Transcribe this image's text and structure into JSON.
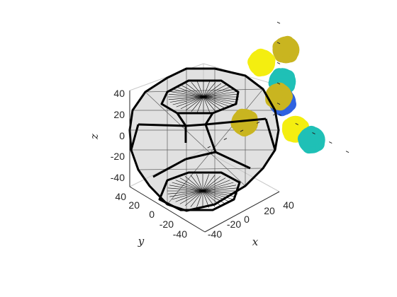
{
  "chart_data": {
    "type": "scatter",
    "title": "",
    "xlabel": "x",
    "ylabel": "y",
    "zlabel": "z",
    "xlim": [
      -45,
      45
    ],
    "ylim": [
      -45,
      45
    ],
    "zlim": [
      -50,
      45
    ],
    "x_ticks": [
      "-40",
      "-20",
      "0",
      "20",
      "40"
    ],
    "y_ticks": [
      "-40",
      "-20",
      "0",
      "20",
      "40"
    ],
    "z_ticks": [
      "-40",
      "-20",
      "0",
      "20",
      "40"
    ],
    "shape": "truncated octahedron wireframe (black edges, gray translucent faces)",
    "grid": false,
    "legend": "none",
    "colors": {
      "olive": "#c9b520",
      "yellow": "#f4ee10",
      "cyan": "#1fc0b6",
      "blue": "#2e62e0",
      "edge": "#000000",
      "face": "#c8c8c8"
    },
    "clusters": [
      {
        "color": "olive",
        "x": -20,
        "y": -30,
        "z": 30
      },
      {
        "color": "yellow",
        "x": -10,
        "y": 10,
        "z": 38
      },
      {
        "color": "cyan",
        "x": 0,
        "y": -5,
        "z": 18
      },
      {
        "color": "blue",
        "x": 5,
        "y": 0,
        "z": 2
      },
      {
        "color": "olive",
        "x": 15,
        "y": 15,
        "z": 18
      },
      {
        "color": "yellow",
        "x": 35,
        "y": 15,
        "z": -5
      },
      {
        "color": "cyan",
        "x": 30,
        "y": -10,
        "z": -28
      },
      {
        "color": "olive",
        "x": -30,
        "y": 10,
        "z": -30
      }
    ]
  }
}
